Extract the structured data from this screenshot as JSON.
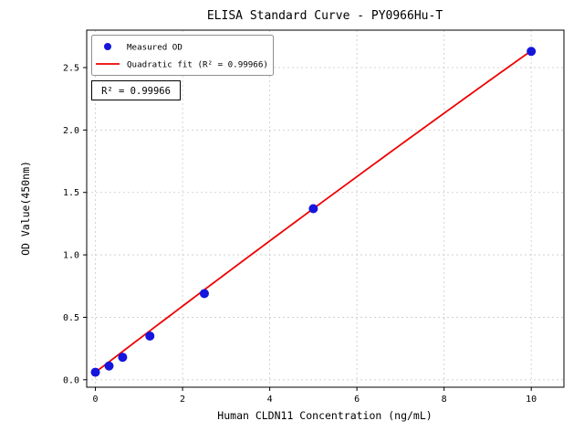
{
  "chart_data": {
    "type": "scatter",
    "title": "ELISA Standard Curve - PY0966Hu-T",
    "xlabel": "Human CLDN11 Concentration (ng/mL)",
    "ylabel": "OD Value(450nm)",
    "xlim": [
      -0.2,
      10.75
    ],
    "ylim": [
      -0.06,
      2.8
    ],
    "xtick_values": [
      0,
      2,
      4,
      6,
      8,
      10
    ],
    "xtick_labels": [
      "0",
      "2",
      "4",
      "6",
      "8",
      "10"
    ],
    "ytick_values": [
      0,
      0.5,
      1,
      1.5,
      2,
      2.5
    ],
    "ytick_labels": [
      "0.0",
      "0.5",
      "1.0",
      "1.5",
      "2.0",
      "2.5"
    ],
    "grid": true,
    "grid_style": "dashed",
    "legend": {
      "position": "upper-left",
      "entries": [
        {
          "label": "Measured OD",
          "marker": "dot",
          "color": "#1515dd"
        },
        {
          "label": "Quadratic fit (R² = 0.99966)",
          "marker": "line",
          "color": "#ee0000"
        }
      ]
    },
    "annotation": "R² = 0.99966",
    "series": [
      {
        "name": "Measured OD",
        "type": "scatter",
        "color": "#1515dd",
        "x": [
          0,
          0.313,
          0.625,
          1.25,
          2.5,
          5,
          10
        ],
        "y": [
          0.06,
          0.11,
          0.18,
          0.35,
          0.69,
          1.37,
          2.63
        ]
      },
      {
        "name": "Quadratic fit (R² = 0.99966)",
        "type": "line",
        "color": "#ee0000",
        "r_squared": 0.99966,
        "fit": {
          "a": 0.06,
          "b": 0.2665,
          "c": -0.0009,
          "x_range": [
            0,
            10
          ]
        }
      }
    ]
  }
}
